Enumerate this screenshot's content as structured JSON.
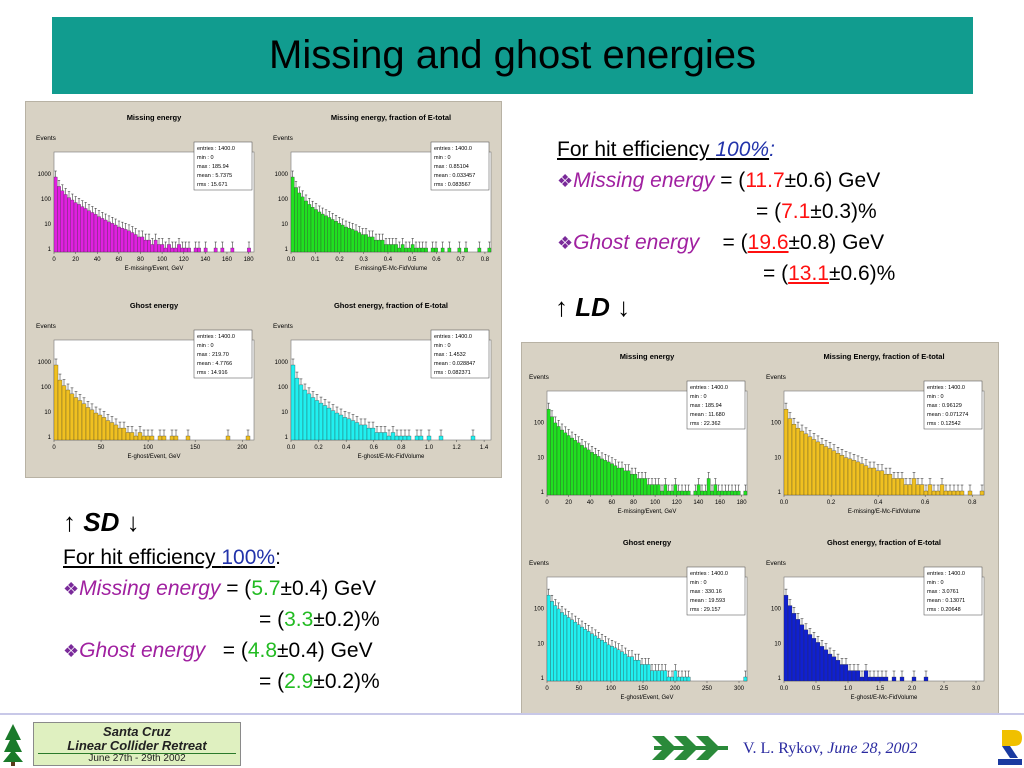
{
  "title": "Missing and ghost energies",
  "sd_section": {
    "heading": "SD",
    "efficiency_label": "For hit efficiency ",
    "efficiency_value": "100%",
    "colon": ":",
    "missing_label": "Missing energy",
    "missing_value": "5.7",
    "missing_err": "±0.4) GeV",
    "missing_pct": "3.3",
    "missing_pct_err": "±0.2)%",
    "ghost_label": "Ghost energy",
    "ghost_value": "4.8",
    "ghost_err": "±0.4) GeV",
    "ghost_pct": "2.9",
    "ghost_pct_err": "±0.2)%"
  },
  "ld_section": {
    "heading": "LD",
    "efficiency_label": "For hit efficiency ",
    "efficiency_value": "100%",
    "colon": ":",
    "missing_label": "Missing energy",
    "missing_value": "11.7",
    "missing_err": "±0.6) GeV",
    "missing_pct": "7.1",
    "missing_pct_err": "±0.3)%",
    "ghost_label": "Ghost energy",
    "ghost_value": "19.6",
    "ghost_err": "±0.8) GeV",
    "ghost_pct": "13.1",
    "ghost_pct_err": "±0.6)%"
  },
  "footer": {
    "logo_line1": "Santa Cruz",
    "logo_line2": "Linear Collider Retreat",
    "logo_line3": "June 27th - 29th 2002",
    "author": "V. L. Rykov, ",
    "date": "June 28, 2002"
  },
  "colors": {
    "title_bg": "#119c8f",
    "magenta_fill": "#e020e0",
    "green_fill": "#20e020",
    "yellow_fill": "#f0c020",
    "cyan_fill": "#20f0f0",
    "blue_fill": "#1020d0"
  },
  "chart_data": [
    {
      "type": "bar",
      "panel": "SD",
      "title": "Missing energy",
      "ylabel": "Events",
      "xlabel": "E-missing/Event, GeV",
      "xticks": [
        "0",
        "20",
        "40",
        "60",
        "80",
        "100",
        "120",
        "140",
        "160",
        "180"
      ],
      "yticks": [
        "1",
        "10",
        "100",
        "1000"
      ],
      "xlim": [
        0,
        190
      ],
      "ylog": true,
      "color": "#e020e0",
      "stats": [
        "entries : 1400.0",
        "min :         0",
        "max :   185.94",
        "mean :  5.7375",
        "rms :    15.671"
      ],
      "values": [
        1000,
        420,
        280,
        200,
        150,
        120,
        95,
        80,
        65,
        55,
        45,
        38,
        32,
        26,
        22,
        19,
        16,
        14,
        12,
        10,
        9,
        8,
        7,
        6,
        5,
        4,
        4,
        3,
        3,
        2,
        3,
        2,
        2,
        1,
        2,
        1,
        1,
        2,
        1,
        1,
        1,
        0,
        1,
        1,
        0,
        1,
        0,
        0,
        1,
        0,
        1,
        0,
        0,
        1,
        0,
        0,
        0,
        0,
        1,
        0
      ]
    },
    {
      "type": "bar",
      "panel": "SD",
      "title": "Missing energy, fraction of E-total",
      "ylabel": "Events",
      "xlabel": "E-missing/E-Mc-FidVolume",
      "xticks": [
        "0.0",
        "0.1",
        "0.2",
        "0.3",
        "0.4",
        "0.5",
        "0.6",
        "0.7",
        "0.8"
      ],
      "yticks": [
        "1",
        "10",
        "100",
        "1000"
      ],
      "xlim": [
        0,
        0.85
      ],
      "ylog": true,
      "color": "#20e020",
      "stats": [
        "entries :   1400.0",
        "min :          0",
        "max :    0.85104",
        "mean : 0.033457",
        "rms :   0.083567"
      ],
      "values": [
        1000,
        380,
        230,
        160,
        110,
        80,
        62,
        50,
        40,
        33,
        28,
        24,
        20,
        17,
        14,
        12,
        10,
        9,
        8,
        7,
        6,
        5,
        5,
        4,
        4,
        3,
        3,
        3,
        2,
        2,
        2,
        2,
        1,
        2,
        1,
        1,
        2,
        1,
        1,
        1,
        1,
        0,
        1,
        1,
        0,
        1,
        0,
        1,
        0,
        0,
        1,
        0,
        1,
        0,
        0,
        0,
        1,
        0,
        0,
        1
      ]
    },
    {
      "type": "bar",
      "panel": "SD",
      "title": "Ghost energy",
      "ylabel": "Events",
      "xlabel": "E-ghost/Event, GeV",
      "xticks": [
        "0",
        "50",
        "100",
        "150",
        "200"
      ],
      "yticks": [
        "1",
        "10",
        "100",
        "1000"
      ],
      "xlim": [
        0,
        220
      ],
      "ylog": true,
      "color": "#f0c020",
      "stats": [
        "entries : 1400.0",
        "min :         0",
        "max :   219.70",
        "mean :  4.7766",
        "rms :    14.916"
      ],
      "values": [
        1000,
        250,
        150,
        100,
        70,
        50,
        38,
        28,
        20,
        16,
        12,
        10,
        8,
        6,
        5,
        4,
        3,
        3,
        2,
        2,
        1,
        2,
        1,
        1,
        1,
        0,
        1,
        1,
        0,
        1,
        1,
        0,
        0,
        1,
        0,
        0,
        0,
        0,
        0,
        0,
        0,
        0,
        0,
        1,
        0,
        0,
        0,
        0,
        1,
        0
      ]
    },
    {
      "type": "bar",
      "panel": "SD",
      "title": "Ghost energy, fraction of E-total",
      "ylabel": "Events",
      "xlabel": "E-ghost/E-Mc-FidVolume",
      "xticks": [
        "0.0",
        "0.2",
        "0.4",
        "0.6",
        "0.8",
        "1.0",
        "1.2",
        "1.4"
      ],
      "yticks": [
        "1",
        "10",
        "100",
        "1000"
      ],
      "xlim": [
        0,
        1.46
      ],
      "ylog": true,
      "color": "#20f0f0",
      "stats": [
        "entries :  1400.0",
        "min :         0",
        "max :     1.4532",
        "mean : 0.028847",
        "rms :   0.082371"
      ],
      "values": [
        1000,
        300,
        160,
        100,
        70,
        50,
        38,
        30,
        24,
        19,
        15,
        12,
        10,
        8,
        7,
        6,
        5,
        4,
        4,
        3,
        3,
        2,
        2,
        2,
        1,
        2,
        1,
        1,
        1,
        1,
        0,
        1,
        1,
        0,
        1,
        0,
        0,
        1,
        0,
        0,
        0,
        0,
        0,
        0,
        0,
        1,
        0,
        0,
        0,
        0
      ]
    },
    {
      "type": "bar",
      "panel": "LD",
      "title": "Missing energy",
      "ylabel": "Events",
      "xlabel": "E-missing/Event, GeV",
      "xticks": [
        "0",
        "20",
        "40",
        "60",
        "80",
        "100",
        "120",
        "140",
        "160",
        "180"
      ],
      "yticks": [
        "1",
        "10",
        "100"
      ],
      "xlim": [
        0,
        190
      ],
      "ylog": true,
      "color": "#20e020",
      "stats": [
        "entries : 1400.0",
        "min :         0",
        "max :   185.94",
        "mean :  11.680",
        "rms :    22.362"
      ],
      "values": [
        300,
        180,
        120,
        95,
        75,
        62,
        52,
        44,
        38,
        32,
        27,
        23,
        20,
        17,
        15,
        13,
        11,
        10,
        9,
        8,
        7,
        6,
        6,
        5,
        5,
        4,
        4,
        3,
        3,
        3,
        2,
        2,
        2,
        2,
        1,
        2,
        1,
        1,
        2,
        1,
        1,
        1,
        1,
        0,
        1,
        2,
        1,
        1,
        3,
        1,
        2,
        1,
        1,
        1,
        1,
        1,
        1,
        1,
        0,
        1
      ]
    },
    {
      "type": "bar",
      "panel": "LD",
      "title": "Missing Energy, fraction of E-total",
      "ylabel": "Events",
      "xlabel": "E-missing/E-Mc-FidVolume",
      "xticks": [
        "0.0",
        "0.2",
        "0.4",
        "0.6",
        "0.8"
      ],
      "yticks": [
        "1",
        "10",
        "100"
      ],
      "xlim": [
        0,
        1.0
      ],
      "ylog": true,
      "color": "#f0c020",
      "stats": [
        "entries :  1400.0",
        "min :          0",
        "max :    0.96129",
        "mean :  0.071274",
        "rms :    0.12542"
      ],
      "values": [
        300,
        160,
        110,
        85,
        70,
        58,
        48,
        40,
        34,
        29,
        25,
        22,
        19,
        16,
        14,
        12,
        11,
        10,
        9,
        8,
        7,
        6,
        6,
        5,
        5,
        4,
        4,
        3,
        3,
        3,
        2,
        2,
        3,
        2,
        2,
        1,
        2,
        1,
        1,
        2,
        1,
        1,
        1,
        1,
        1,
        0,
        1,
        0,
        0,
        1
      ]
    },
    {
      "type": "bar",
      "panel": "LD",
      "title": "Ghost energy",
      "ylabel": "Events",
      "xlabel": "E-ghost/Event, GeV",
      "xticks": [
        "0",
        "50",
        "100",
        "150",
        "200",
        "250",
        "300"
      ],
      "yticks": [
        "1",
        "10",
        "100"
      ],
      "xlim": [
        0,
        330
      ],
      "ylog": true,
      "color": "#20f0f0",
      "stats": [
        "entries : 1400.0",
        "min :         0",
        "max :   330.16",
        "mean :  19.593",
        "rms :    29.157"
      ],
      "values": [
        300,
        200,
        150,
        120,
        95,
        80,
        68,
        58,
        50,
        42,
        36,
        31,
        27,
        23,
        20,
        17,
        15,
        13,
        11,
        10,
        9,
        8,
        7,
        6,
        5,
        5,
        4,
        4,
        3,
        3,
        3,
        2,
        2,
        2,
        2,
        2,
        1,
        1,
        2,
        1,
        1,
        1,
        1,
        0,
        0,
        0,
        0,
        0,
        0,
        0,
        0,
        0,
        0,
        0,
        0,
        0,
        0,
        0,
        0,
        1
      ]
    },
    {
      "type": "bar",
      "panel": "LD",
      "title": "Ghost energy, fraction of E-total",
      "ylabel": "Events",
      "xlabel": "E-ghost/E-Mc-FidVolume",
      "xticks": [
        "0.0",
        "0.5",
        "1.0",
        "1.5",
        "2.0",
        "2.5",
        "3.0"
      ],
      "yticks": [
        "1",
        "10",
        "100"
      ],
      "xlim": [
        0,
        3.1
      ],
      "ylog": true,
      "color": "#1020d0",
      "stats": [
        "entries : 1400.0",
        "min :         0",
        "max :    3.0761",
        "mean :  0.13071",
        "rms :    0.20648"
      ],
      "values": [
        300,
        150,
        90,
        60,
        42,
        30,
        22,
        17,
        13,
        10,
        8,
        6,
        5,
        4,
        3,
        3,
        2,
        2,
        2,
        1,
        2,
        1,
        1,
        1,
        1,
        1,
        0,
        1,
        0,
        1,
        0,
        0,
        1,
        0,
        0,
        1,
        0,
        0,
        0,
        0,
        0,
        0,
        0,
        0,
        0,
        0,
        0,
        0,
        0,
        0
      ]
    }
  ]
}
